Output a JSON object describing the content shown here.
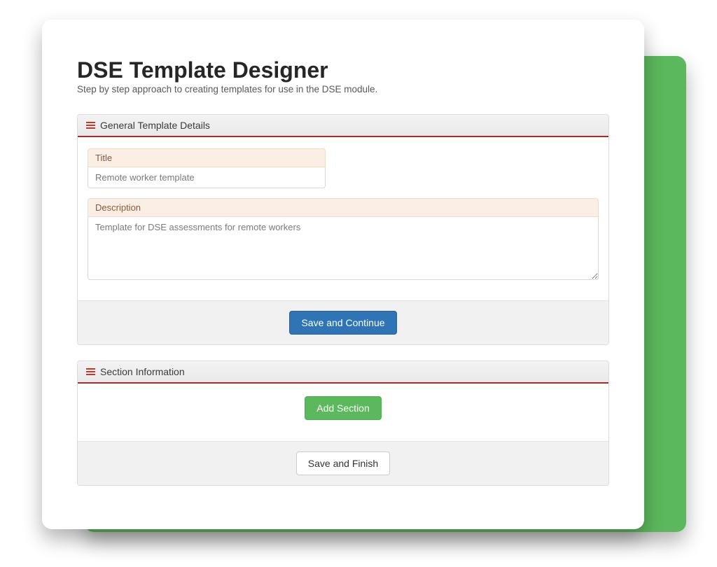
{
  "page": {
    "title": "DSE Template Designer",
    "subtitle": "Step by step approach to creating templates for use in the DSE module."
  },
  "panels": {
    "general": {
      "heading": "General Template Details",
      "title_label": "Title",
      "title_value": "Remote worker template",
      "description_label": "Description",
      "description_value": "Template for DSE assessments for remote workers",
      "save_continue": "Save and Continue"
    },
    "section": {
      "heading": "Section Information",
      "add_section": "Add Section",
      "save_finish": "Save and Finish"
    }
  },
  "colors": {
    "accent_green": "#5cb85c",
    "accent_red": "#b02a2a",
    "primary_blue": "#2f75b5",
    "label_bg": "#fbeee4"
  }
}
